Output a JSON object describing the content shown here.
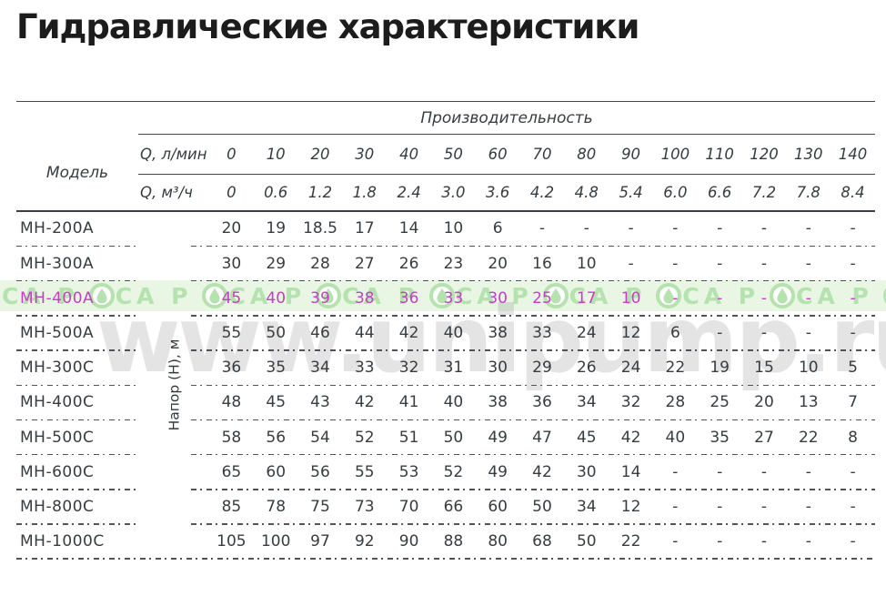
{
  "title": "Гидравлические характеристики",
  "table": {
    "capacity_header": "Производительность",
    "model_header": "Модель",
    "flow_lmin_label": "Q, л/мин",
    "flow_m3h_label": "Q, м³/ч",
    "head_axis_label": "Напор (Н), м",
    "flow_lmin_values": [
      "0",
      "10",
      "20",
      "30",
      "40",
      "50",
      "60",
      "70",
      "80",
      "90",
      "100",
      "110",
      "120",
      "130",
      "140"
    ],
    "flow_m3h_values": [
      "0",
      "0.6",
      "1.2",
      "1.8",
      "2.4",
      "3.0",
      "3.6",
      "4.2",
      "4.8",
      "5.4",
      "6.0",
      "6.6",
      "7.2",
      "7.8",
      "8.4"
    ],
    "rows": [
      {
        "model": "МН-200А",
        "highlight": false,
        "values": [
          "20",
          "19",
          "18.5",
          "17",
          "14",
          "10",
          "6",
          "-",
          "-",
          "-",
          "-",
          "-",
          "-",
          "-",
          "-"
        ]
      },
      {
        "model": "МН-300А",
        "highlight": false,
        "values": [
          "30",
          "29",
          "28",
          "27",
          "26",
          "23",
          "20",
          "16",
          "10",
          "-",
          "-",
          "-",
          "-",
          "-",
          "-"
        ]
      },
      {
        "model": "МН-400А",
        "highlight": true,
        "values": [
          "45",
          "40",
          "39",
          "38",
          "36",
          "33",
          "30",
          "25",
          "17",
          "10",
          "-",
          "-",
          "-",
          "-",
          "-"
        ]
      },
      {
        "model": "МН-500А",
        "highlight": false,
        "values": [
          "55",
          "50",
          "46",
          "44",
          "42",
          "40",
          "38",
          "33",
          "24",
          "12",
          "6",
          "-",
          "-",
          "-",
          "-"
        ]
      },
      {
        "model": "МН-300С",
        "highlight": false,
        "values": [
          "36",
          "35",
          "34",
          "33",
          "32",
          "31",
          "30",
          "29",
          "26",
          "24",
          "22",
          "19",
          "15",
          "10",
          "5"
        ]
      },
      {
        "model": "МН-400С",
        "highlight": false,
        "values": [
          "48",
          "45",
          "43",
          "42",
          "41",
          "40",
          "38",
          "36",
          "34",
          "32",
          "28",
          "25",
          "20",
          "13",
          "7"
        ]
      },
      {
        "model": "МН-500С",
        "highlight": false,
        "values": [
          "58",
          "56",
          "54",
          "52",
          "51",
          "50",
          "49",
          "47",
          "45",
          "42",
          "40",
          "35",
          "27",
          "22",
          "8"
        ]
      },
      {
        "model": "МН-600С",
        "highlight": false,
        "values": [
          "65",
          "60",
          "56",
          "55",
          "53",
          "52",
          "49",
          "42",
          "30",
          "14",
          "-",
          "-",
          "-",
          "-",
          "-"
        ]
      },
      {
        "model": "МН-800С",
        "highlight": false,
        "values": [
          "85",
          "78",
          "75",
          "73",
          "70",
          "66",
          "60",
          "50",
          "34",
          "12",
          "-",
          "-",
          "-",
          "-",
          "-"
        ]
      },
      {
        "model": "МН-1000С",
        "highlight": false,
        "values": [
          "105",
          "100",
          "97",
          "92",
          "90",
          "88",
          "80",
          "68",
          "50",
          "22",
          "-",
          "-",
          "-",
          "-",
          "-"
        ]
      }
    ]
  },
  "watermarks": {
    "site_text": "www.unipump.ru",
    "brand_unit_text": "СА Р",
    "brand_repeat_count": 10,
    "brand_color": "#b5e2ae",
    "band_background": "#e8f6e3"
  },
  "colors": {
    "highlight_text": "#c63dc6",
    "body_text": "#373c40",
    "line": "#43474b"
  }
}
